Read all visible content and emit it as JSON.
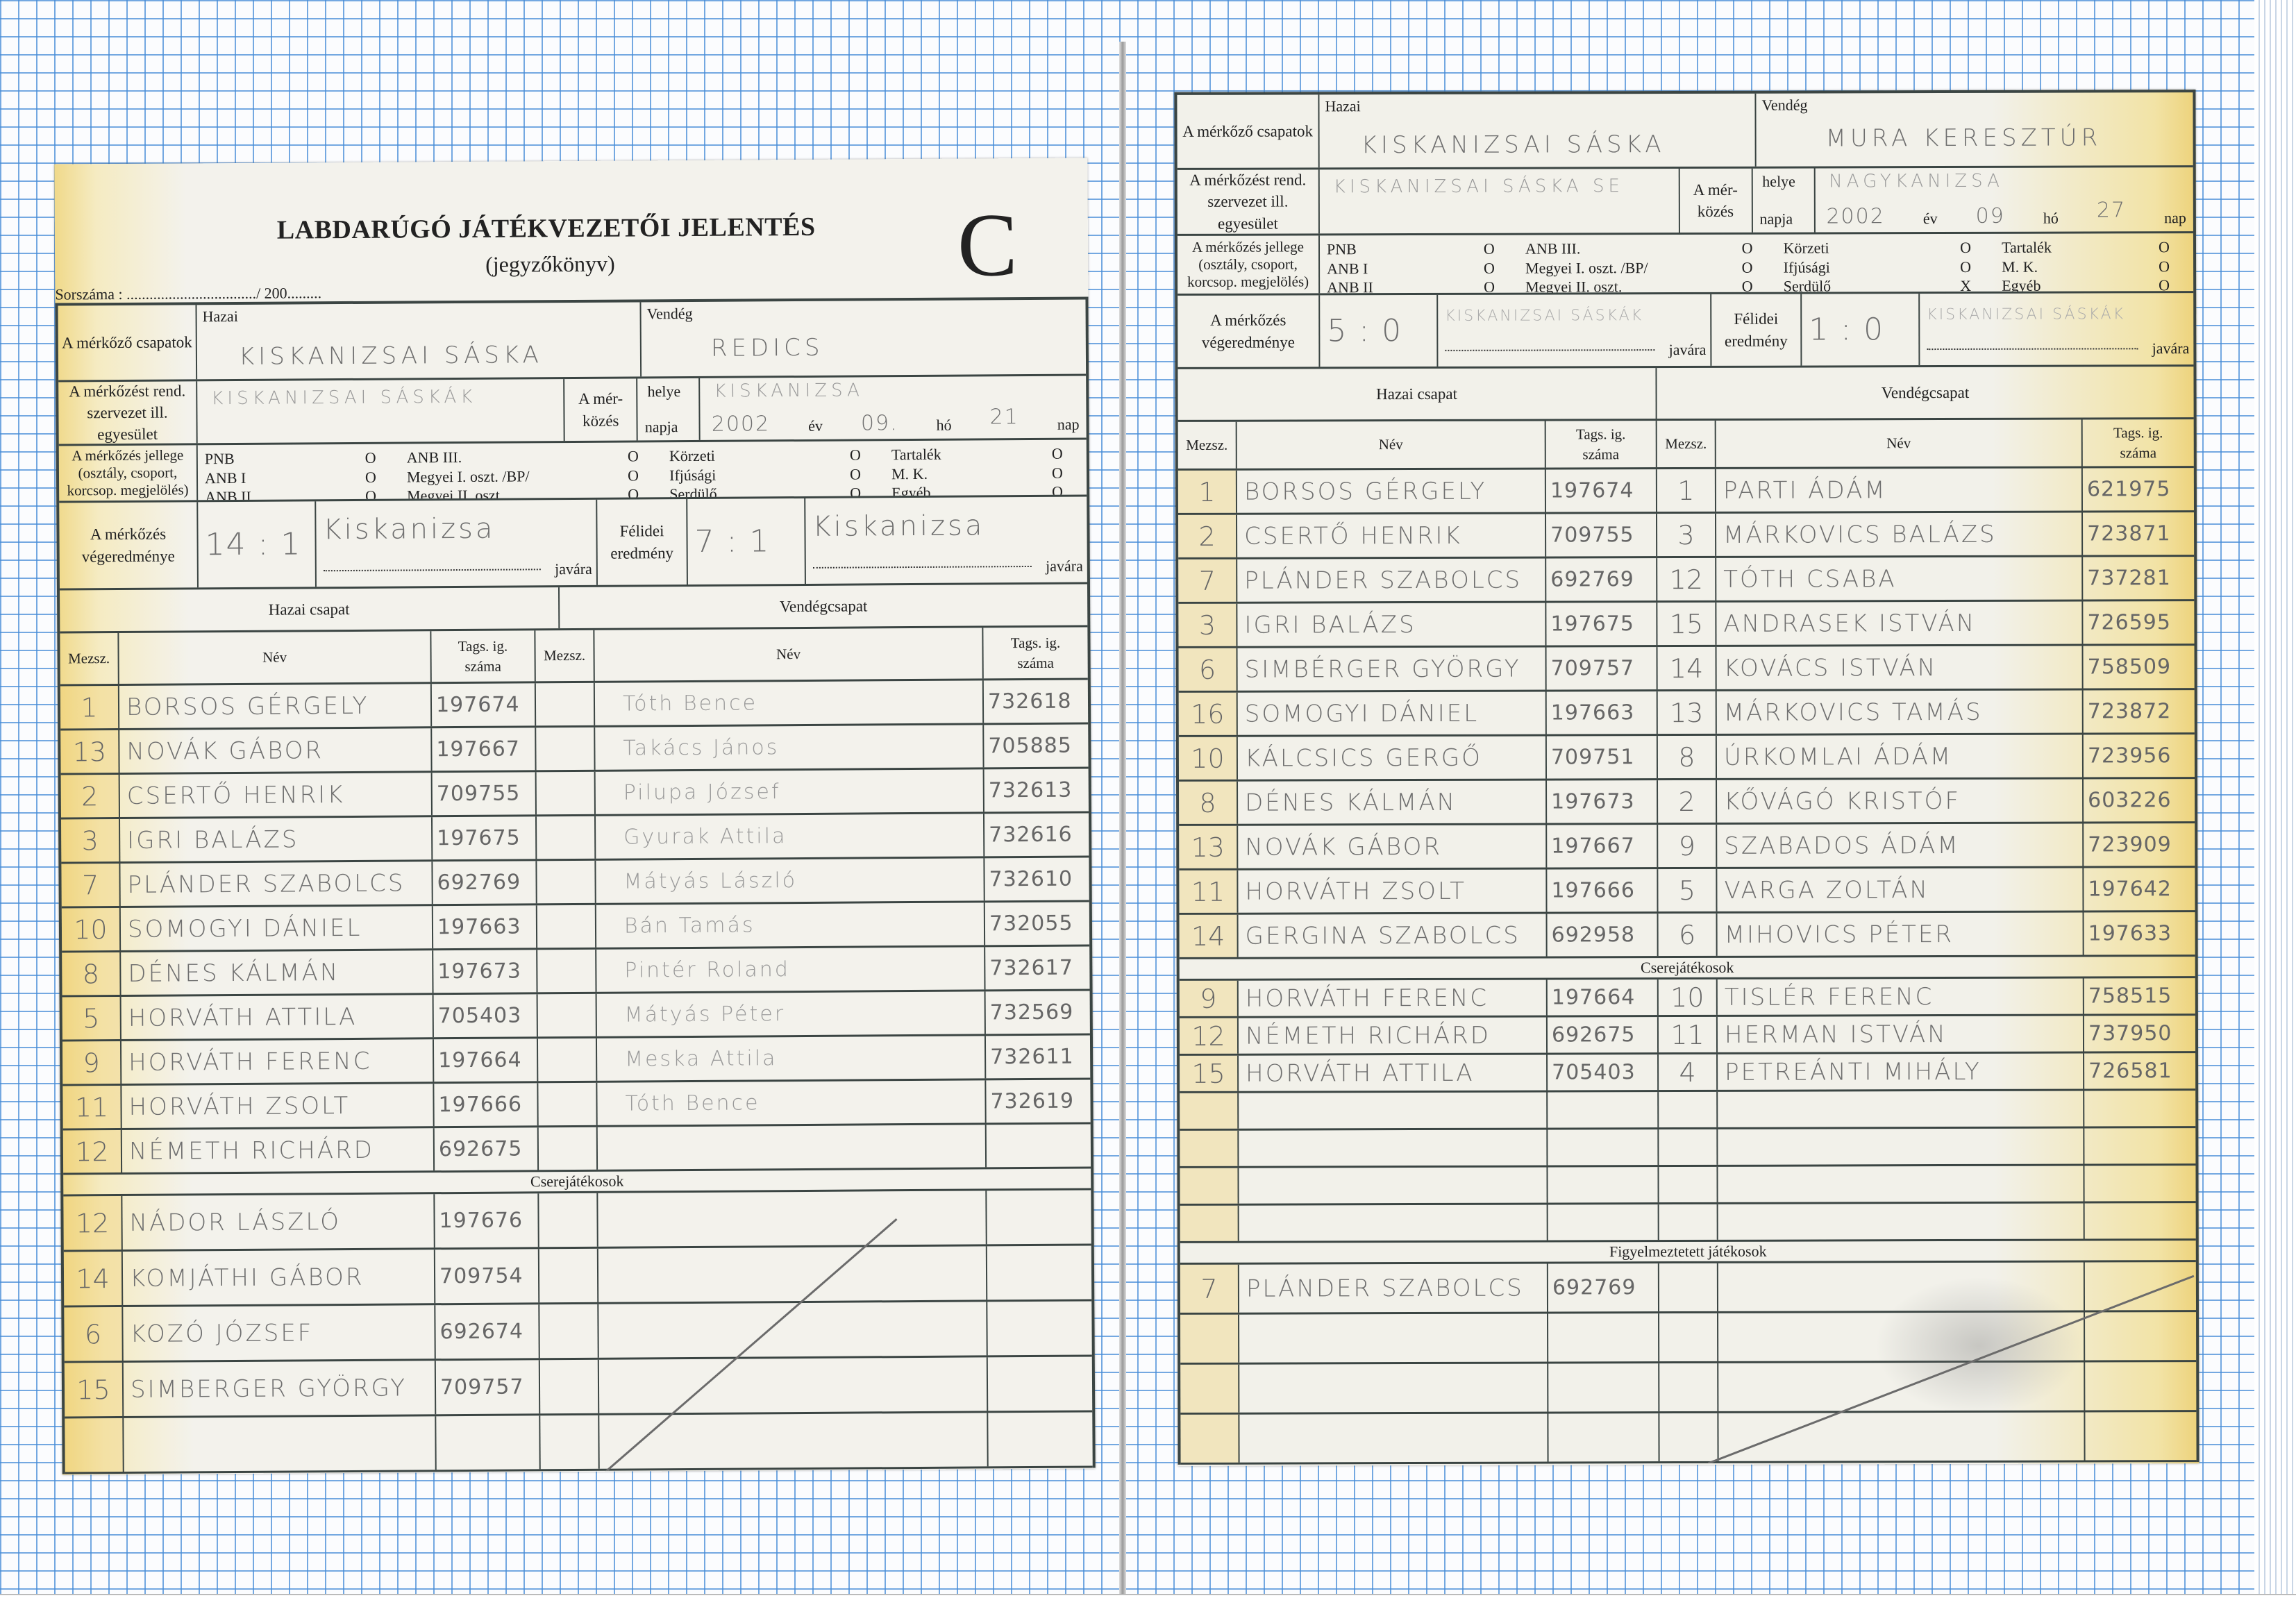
{
  "labels": {
    "teams": "A mérkőző csapatok",
    "home": "Hazai",
    "away": "Vendég",
    "organizer": "A mérkőzést rend. szervezet ill. egyesület",
    "match": "A mér-közés",
    "venue": "helye",
    "date": "napja",
    "year_suffix": "év",
    "month_suffix": "hó",
    "day_suffix": "nap",
    "category": "A mérkőzés jellege (osztály, csoport, korcsop. megjelölés)",
    "final_result": "A mérkőzés végeredménye",
    "half_result": "Félidei eredmény",
    "winner_suffix": "javára",
    "home_team_heading": "Hazai csapat",
    "away_team_heading": "Vendégcsapat",
    "col_number": "Mezsz.",
    "col_name": "Név",
    "col_id": "Tags. ig. száma",
    "substitutes": "Cserejátékosok",
    "warned": "Figyelmeztetett játékosok"
  },
  "left_form": {
    "title": "LABDARÚGÓ JÁTÉKVEZETŐI JELENTÉS",
    "subtitle": "(jegyzőkönyv)",
    "form_letter": "C",
    "serial": "Sorszáma : ................................../ 200.........",
    "home_team": "KISKANIZSAI SÁSKA",
    "away_team": "REDICS",
    "organizer": "KISKANIZSAI SÁSKÁK",
    "venue": "KISKANIZSA",
    "year": "2002",
    "month": "09.",
    "day": "21",
    "categories": [
      [
        [
          "PNB",
          "O"
        ],
        [
          "ANB I",
          "O"
        ],
        [
          "ANB II",
          "O"
        ]
      ],
      [
        [
          "ANB III.",
          "O"
        ],
        [
          "Megyei I. oszt. /BP/",
          "O"
        ],
        [
          "Megyei II. oszt.",
          "O"
        ]
      ],
      [
        [
          "Körzeti",
          "O"
        ],
        [
          "Ifjúsági",
          "O"
        ],
        [
          "Serdülő",
          "O"
        ]
      ],
      [
        [
          "Tartalék",
          "O"
        ],
        [
          "M. K.",
          "O"
        ],
        [
          "Egyéb",
          "O"
        ]
      ]
    ],
    "final_score": "14 : 1",
    "final_winner": "Kiskanizsa",
    "half_score": "7 : 1",
    "half_winner": "Kiskanizsa",
    "home_players": [
      {
        "no": "1",
        "name": "BORSOS GÉRGELY",
        "id": "197674"
      },
      {
        "no": "13",
        "name": "NOVÁK GÁBOR",
        "id": "197667"
      },
      {
        "no": "2",
        "name": "CSERTŐ HENRIK",
        "id": "709755"
      },
      {
        "no": "3",
        "name": "IGRI BALÁZS",
        "id": "197675"
      },
      {
        "no": "7",
        "name": "PLÁNDER SZABOLCS",
        "id": "692769"
      },
      {
        "no": "10",
        "name": "SOMOGYI DÁNIEL",
        "id": "197663"
      },
      {
        "no": "8",
        "name": "DÉNES KÁLMÁN",
        "id": "197673"
      },
      {
        "no": "5",
        "name": "HORVÁTH ATTILA",
        "id": "705403"
      },
      {
        "no": "9",
        "name": "HORVÁTH FERENC",
        "id": "197664"
      },
      {
        "no": "11",
        "name": "HORVÁTH ZSOLT",
        "id": "197666"
      },
      {
        "no": "12",
        "name": "NÉMETH RICHÁRD",
        "id": "692675"
      }
    ],
    "away_players": [
      {
        "no": "",
        "name": "Tóth Bence",
        "id": "732618"
      },
      {
        "no": "",
        "name": "Takács János",
        "id": "705885"
      },
      {
        "no": "",
        "name": "Pilupa József",
        "id": "732613"
      },
      {
        "no": "",
        "name": "Gyurak Attila",
        "id": "732616"
      },
      {
        "no": "",
        "name": "Mátyás László",
        "id": "732610"
      },
      {
        "no": "",
        "name": "Bán Tamás",
        "id": "732055"
      },
      {
        "no": "",
        "name": "Pintér Roland",
        "id": "732617"
      },
      {
        "no": "",
        "name": "Mátyás Péter",
        "id": "732569"
      },
      {
        "no": "",
        "name": "Meska Attila",
        "id": "732611"
      },
      {
        "no": "",
        "name": "Tóth Bence",
        "id": "732619"
      },
      {
        "no": "",
        "name": "",
        "id": ""
      }
    ],
    "home_substitutes": [
      {
        "no": "12",
        "name": "NÁDOR LÁSZLÓ",
        "id": "197676"
      },
      {
        "no": "14",
        "name": "KOMJÁTHI GÁBOR",
        "id": "709754"
      },
      {
        "no": "6",
        "name": "KOZÓ JÓZSEF",
        "id": "692674"
      },
      {
        "no": "15",
        "name": "SIMBERGER GYÖRGY",
        "id": "709757"
      },
      {
        "no": "",
        "name": "",
        "id": ""
      }
    ]
  },
  "right_form": {
    "home_team": "KISKANIZSAI SÁSKA",
    "away_team": "MURA KERESZTÚR",
    "organizer": "KISKANIZSAI SÁSKA SE",
    "venue": "NAGYKANIZSA",
    "year": "2002",
    "month": "09",
    "day": "27",
    "categories": [
      [
        [
          "PNB",
          "O"
        ],
        [
          "ANB I",
          "O"
        ],
        [
          "ANB II",
          "O"
        ]
      ],
      [
        [
          "ANB III.",
          "O"
        ],
        [
          "Megyei I. oszt. /BP/",
          "O"
        ],
        [
          "Megyei II. oszt.",
          "O"
        ]
      ],
      [
        [
          "Körzeti",
          "O"
        ],
        [
          "Ifjúsági",
          "O"
        ],
        [
          "Serdülő",
          "X"
        ]
      ],
      [
        [
          "Tartalék",
          "O"
        ],
        [
          "M. K.",
          "O"
        ],
        [
          "Egyéb",
          "O"
        ]
      ]
    ],
    "final_score": "5 : 0",
    "final_winner": "KISKANIZSAI SÁSKÁK",
    "half_score": "1 : 0",
    "half_winner": "KISKANIZSAI SÁSKÁK",
    "home_players": [
      {
        "no": "1",
        "name": "BORSOS GÉRGELY",
        "id": "197674"
      },
      {
        "no": "2",
        "name": "CSERTŐ HENRIK",
        "id": "709755"
      },
      {
        "no": "7",
        "name": "PLÁNDER SZABOLCS",
        "id": "692769"
      },
      {
        "no": "3",
        "name": "IGRI BALÁZS",
        "id": "197675"
      },
      {
        "no": "6",
        "name": "SIMBÉRGER GYÖRGY",
        "id": "709757"
      },
      {
        "no": "16",
        "name": "SOMOGYI DÁNIEL",
        "id": "197663"
      },
      {
        "no": "10",
        "name": "KÁLCSICS GERGŐ",
        "id": "709751"
      },
      {
        "no": "8",
        "name": "DÉNES KÁLMÁN",
        "id": "197673"
      },
      {
        "no": "13",
        "name": "NOVÁK GÁBOR",
        "id": "197667"
      },
      {
        "no": "11",
        "name": "HORVÁTH ZSOLT",
        "id": "197666"
      },
      {
        "no": "14",
        "name": "GERGINA SZABOLCS",
        "id": "692958"
      }
    ],
    "away_players": [
      {
        "no": "1",
        "name": "PARTI ÁDÁM",
        "id": "621975"
      },
      {
        "no": "3",
        "name": "MÁRKOVICS BALÁZS",
        "id": "723871"
      },
      {
        "no": "12",
        "name": "TÓTH CSABA",
        "id": "737281"
      },
      {
        "no": "15",
        "name": "ANDRASEK ISTVÁN",
        "id": "726595"
      },
      {
        "no": "14",
        "name": "KOVÁCS ISTVÁN",
        "id": "758509"
      },
      {
        "no": "13",
        "name": "MÁRKOVICS TAMÁS",
        "id": "723872"
      },
      {
        "no": "8",
        "name": "ÚRKOMLAI ÁDÁM",
        "id": "723956"
      },
      {
        "no": "2",
        "name": "KŐVÁGÓ KRISTÓF",
        "id": "603226"
      },
      {
        "no": "9",
        "name": "SZABADOS ÁDÁM",
        "id": "723909"
      },
      {
        "no": "5",
        "name": "VARGA ZOLTÁN",
        "id": "197642"
      },
      {
        "no": "6",
        "name": "MIHOVICS PÉTER",
        "id": "197633"
      }
    ],
    "home_substitutes": [
      {
        "no": "9",
        "name": "HORVÁTH FERENC",
        "id": "197664"
      },
      {
        "no": "12",
        "name": "NÉMETH RICHÁRD",
        "id": "692675"
      },
      {
        "no": "15",
        "name": "HORVÁTH ATTILA",
        "id": "705403"
      },
      {
        "no": "",
        "name": "",
        "id": ""
      },
      {
        "no": "",
        "name": "",
        "id": ""
      },
      {
        "no": "",
        "name": "",
        "id": ""
      },
      {
        "no": "",
        "name": "",
        "id": ""
      }
    ],
    "away_substitutes": [
      {
        "no": "10",
        "name": "TISLÉR FERENC",
        "id": "758515"
      },
      {
        "no": "11",
        "name": "HERMAN ISTVÁN",
        "id": "737950"
      },
      {
        "no": "4",
        "name": "PETREÁNTI MIHÁLY",
        "id": "726581"
      },
      {
        "no": "",
        "name": "",
        "id": ""
      },
      {
        "no": "",
        "name": "",
        "id": ""
      },
      {
        "no": "",
        "name": "",
        "id": ""
      },
      {
        "no": "",
        "name": "",
        "id": ""
      }
    ],
    "warned_players": [
      {
        "no": "7",
        "name": "PLÁNDER SZABOLCS",
        "id": "692769"
      },
      {
        "no": "",
        "name": "",
        "id": ""
      },
      {
        "no": "",
        "name": "",
        "id": ""
      },
      {
        "no": "",
        "name": "",
        "id": ""
      }
    ]
  }
}
